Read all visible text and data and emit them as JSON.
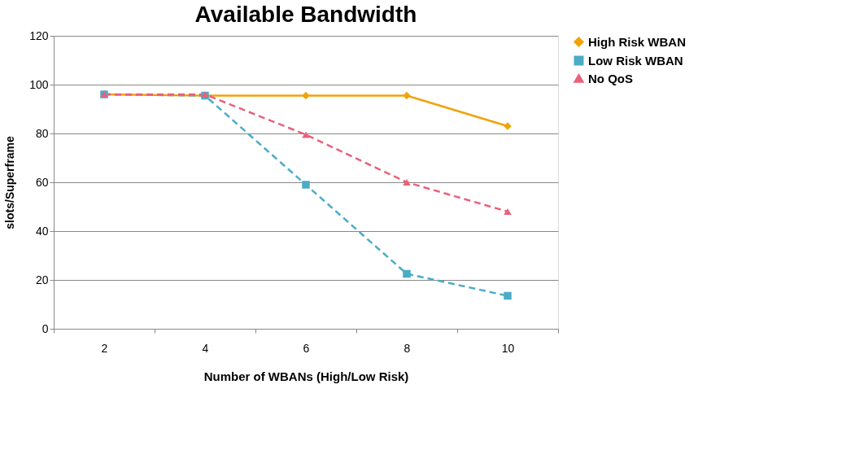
{
  "chart_data": {
    "type": "line",
    "title": "Available Bandwidth",
    "xlabel": "Number of WBANs (High/Low Risk)",
    "ylabel": "slots/Superframe",
    "categories": [
      "2",
      "4",
      "6",
      "8",
      "10"
    ],
    "series": [
      {
        "name": "High Risk WBAN",
        "color": "#f0a30a",
        "marker": "diamond",
        "line_style": "solid",
        "values": [
          96,
          95.5,
          95.5,
          95.5,
          83
        ]
      },
      {
        "name": "Low Risk WBAN",
        "color": "#4bacc6",
        "marker": "square",
        "line_style": "dashed",
        "values": [
          96,
          95.5,
          59,
          22.5,
          13.5
        ]
      },
      {
        "name": "No QoS",
        "color": "#e8627a",
        "marker": "triangle",
        "line_style": "dashed",
        "values": [
          96,
          96,
          79.5,
          60,
          48
        ]
      }
    ],
    "ylim": [
      0,
      120
    ],
    "yticks": [
      0,
      20,
      40,
      60,
      80,
      100,
      120
    ],
    "grid": "y",
    "legend": "right"
  }
}
